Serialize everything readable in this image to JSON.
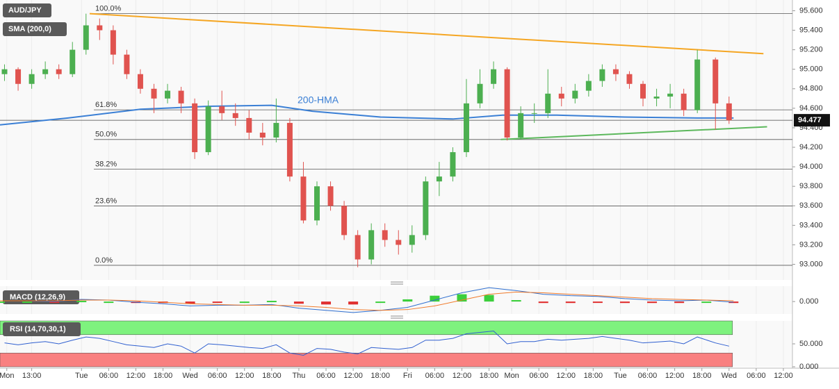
{
  "chart_data": {
    "type": "candlestick",
    "symbol": "AUD/JPY",
    "overlay_label": "SMA (200,0)",
    "up_color": "#4caf50",
    "down_color": "#e0534f",
    "grid": true,
    "xlim": [
      -18,
      157
    ],
    "xticks": [
      {
        "value": -16.5,
        "label": "Mon"
      },
      {
        "value": -11,
        "label": "13:00"
      },
      {
        "value": 0,
        "label": "Tue"
      },
      {
        "value": 6,
        "label": "06:00"
      },
      {
        "value": 12,
        "label": "12:00"
      },
      {
        "value": 18,
        "label": "18:00"
      },
      {
        "value": 24,
        "label": "Wed"
      },
      {
        "value": 30,
        "label": "06:00"
      },
      {
        "value": 36,
        "label": "12:00"
      },
      {
        "value": 42,
        "label": "18:00"
      },
      {
        "value": 48,
        "label": "Thu"
      },
      {
        "value": 54,
        "label": "06:00"
      },
      {
        "value": 60,
        "label": "12:00"
      },
      {
        "value": 66,
        "label": "18:00"
      },
      {
        "value": 72,
        "label": "Fri"
      },
      {
        "value": 78,
        "label": "06:00"
      },
      {
        "value": 84,
        "label": "12:00"
      },
      {
        "value": 90,
        "label": "18:00"
      },
      {
        "value": 95,
        "label": "Mon"
      },
      {
        "value": 101,
        "label": "06:00"
      },
      {
        "value": 107,
        "label": "12:00"
      },
      {
        "value": 113,
        "label": "18:00"
      },
      {
        "value": 119,
        "label": "Tue"
      },
      {
        "value": 125,
        "label": "06:00"
      },
      {
        "value": 131,
        "label": "12:00"
      },
      {
        "value": 137,
        "label": "18:00"
      },
      {
        "value": 143,
        "label": "Wed"
      },
      {
        "value": 149,
        "label": "06:00"
      },
      {
        "value": 155,
        "label": "12:00"
      }
    ],
    "ylim": [
      92.84,
      95.71
    ],
    "yticks": [
      {
        "value": 95.6,
        "label": "95.600"
      },
      {
        "value": 95.4,
        "label": "95.400"
      },
      {
        "value": 95.2,
        "label": "95.200"
      },
      {
        "value": 95.0,
        "label": "95.000"
      },
      {
        "value": 94.8,
        "label": "94.800"
      },
      {
        "value": 94.6,
        "label": "94.600"
      },
      {
        "value": 94.4,
        "label": "94.400"
      },
      {
        "value": 94.2,
        "label": "94.200"
      },
      {
        "value": 94.0,
        "label": "94.000"
      },
      {
        "value": 93.8,
        "label": "93.800"
      },
      {
        "value": 93.6,
        "label": "93.600"
      },
      {
        "value": 93.4,
        "label": "93.400"
      },
      {
        "value": 93.2,
        "label": "93.200"
      },
      {
        "value": 93.0,
        "label": "93.000"
      }
    ],
    "last_price": 94.477,
    "x": [
      -17,
      -14,
      -11,
      -8,
      -5,
      -2,
      1,
      4,
      7,
      10,
      13,
      16,
      19,
      22,
      25,
      28,
      31,
      34,
      37,
      40,
      43,
      46,
      49,
      52,
      55,
      58,
      61,
      64,
      67,
      70,
      73,
      76,
      79,
      82,
      85,
      88,
      91,
      94,
      97,
      100,
      103,
      106,
      109,
      112,
      115,
      118,
      121,
      124,
      127,
      130,
      133,
      136,
      140,
      143
    ],
    "ohlc": [
      [
        94.95,
        95.05,
        94.88,
        95.0
      ],
      [
        95.0,
        95.02,
        94.78,
        94.85
      ],
      [
        94.85,
        95.0,
        94.8,
        94.95
      ],
      [
        94.95,
        95.08,
        94.9,
        95.0
      ],
      [
        95.0,
        95.05,
        94.9,
        94.95
      ],
      [
        94.95,
        95.28,
        94.92,
        95.2
      ],
      [
        95.2,
        95.57,
        95.15,
        95.45
      ],
      [
        95.45,
        95.52,
        95.3,
        95.4
      ],
      [
        95.4,
        95.45,
        95.05,
        95.15
      ],
      [
        95.15,
        95.2,
        94.9,
        94.95
      ],
      [
        94.95,
        95.0,
        94.75,
        94.8
      ],
      [
        94.8,
        94.85,
        94.55,
        94.7
      ],
      [
        94.7,
        94.85,
        94.65,
        94.78
      ],
      [
        94.78,
        94.82,
        94.55,
        94.65
      ],
      [
        94.65,
        94.7,
        94.08,
        94.15
      ],
      [
        94.15,
        94.68,
        94.12,
        94.62
      ],
      [
        94.62,
        94.78,
        94.48,
        94.55
      ],
      [
        94.55,
        94.65,
        94.42,
        94.5
      ],
      [
        94.5,
        94.58,
        94.28,
        94.35
      ],
      [
        94.35,
        94.45,
        94.22,
        94.3
      ],
      [
        94.3,
        94.7,
        94.25,
        94.45
      ],
      [
        94.45,
        94.5,
        93.85,
        93.9
      ],
      [
        93.9,
        94.05,
        93.42,
        93.45
      ],
      [
        93.45,
        93.85,
        93.4,
        93.8
      ],
      [
        93.8,
        93.85,
        93.55,
        93.6
      ],
      [
        93.6,
        93.65,
        93.25,
        93.3
      ],
      [
        93.3,
        93.35,
        92.97,
        93.05
      ],
      [
        93.05,
        93.42,
        93.0,
        93.35
      ],
      [
        93.35,
        93.42,
        93.18,
        93.25
      ],
      [
        93.25,
        93.35,
        93.1,
        93.2
      ],
      [
        93.2,
        93.4,
        93.12,
        93.3
      ],
      [
        93.3,
        93.9,
        93.25,
        93.85
      ],
      [
        93.85,
        94.05,
        93.7,
        93.9
      ],
      [
        93.9,
        94.2,
        93.85,
        94.15
      ],
      [
        94.15,
        94.9,
        94.1,
        94.65
      ],
      [
        94.65,
        95.0,
        94.6,
        94.85
      ],
      [
        94.85,
        95.08,
        94.8,
        95.0
      ],
      [
        95.0,
        95.02,
        94.27,
        94.3
      ],
      [
        94.3,
        94.62,
        94.28,
        94.55
      ],
      [
        94.55,
        94.65,
        94.45,
        94.55
      ],
      [
        94.55,
        95.0,
        94.5,
        94.75
      ],
      [
        94.75,
        94.82,
        94.62,
        94.7
      ],
      [
        94.7,
        94.85,
        94.65,
        94.78
      ],
      [
        94.78,
        94.95,
        94.72,
        94.88
      ],
      [
        94.88,
        95.05,
        94.82,
        95.0
      ],
      [
        95.0,
        95.05,
        94.88,
        94.95
      ],
      [
        94.95,
        94.98,
        94.8,
        94.85
      ],
      [
        94.85,
        94.88,
        94.62,
        94.7
      ],
      [
        94.7,
        94.8,
        94.62,
        94.72
      ],
      [
        94.72,
        94.85,
        94.6,
        94.75
      ],
      [
        94.75,
        94.8,
        94.52,
        94.58
      ],
      [
        94.58,
        95.2,
        94.55,
        95.1
      ],
      [
        95.1,
        95.12,
        94.38,
        94.65
      ],
      [
        94.65,
        94.72,
        94.44,
        94.477
      ]
    ],
    "hma": {
      "name": "200-HMA",
      "color": "#3a7fd5",
      "x": [
        -18,
        -3,
        13,
        28,
        42,
        51,
        66,
        82,
        93,
        105,
        120,
        136,
        144
      ],
      "values": [
        94.43,
        94.5,
        94.59,
        94.62,
        94.63,
        94.57,
        94.51,
        94.49,
        94.53,
        94.53,
        94.51,
        94.5,
        94.5
      ]
    },
    "fibonacci": [
      {
        "label": "100.0%",
        "value": 95.57
      },
      {
        "label": "61.8%",
        "value": 94.584
      },
      {
        "label": "50.0%",
        "value": 94.28
      },
      {
        "label": "38.2%",
        "value": 93.976
      },
      {
        "label": "23.6%",
        "value": 93.599
      },
      {
        "label": "0.0%",
        "value": 92.99
      }
    ],
    "trendlines": [
      {
        "color": "#f5a623",
        "x": [
          1.8,
          150.6
        ],
        "values": [
          95.57,
          95.16
        ]
      },
      {
        "color": "#5cb85c",
        "x": [
          92.6,
          151.4
        ],
        "values": [
          94.28,
          94.41
        ]
      }
    ],
    "macd": {
      "label": "MACD (12,26,9)",
      "ylim": [
        -0.17,
        0.21
      ],
      "yticks": [
        {
          "value": 0,
          "label": "0.000"
        }
      ],
      "x": [
        -18,
        -12,
        -6,
        0,
        6,
        12,
        18,
        24,
        30,
        36,
        42,
        48,
        54,
        60,
        66,
        72,
        78,
        84,
        90,
        96,
        102,
        108,
        114,
        120,
        126,
        132,
        138,
        144
      ],
      "macd_line": {
        "color": "#2f6fd0",
        "values": [
          0.01,
          0.01,
          0.0,
          0.03,
          0.02,
          -0.01,
          -0.03,
          -0.06,
          -0.05,
          -0.05,
          -0.04,
          -0.09,
          -0.12,
          -0.15,
          -0.12,
          -0.08,
          0.02,
          0.12,
          0.19,
          0.15,
          0.1,
          0.08,
          0.07,
          0.04,
          0.02,
          0.01,
          0.02,
          -0.01
        ]
      },
      "signal_line": {
        "color": "#f07a2a",
        "values": [
          0.01,
          0.01,
          0.01,
          0.02,
          0.02,
          0.01,
          -0.01,
          -0.03,
          -0.04,
          -0.05,
          -0.05,
          -0.06,
          -0.08,
          -0.11,
          -0.12,
          -0.11,
          -0.06,
          0.02,
          0.1,
          0.13,
          0.12,
          0.1,
          0.08,
          0.06,
          0.04,
          0.03,
          0.02,
          0.01
        ]
      },
      "histogram": [
        0,
        0,
        -0.01,
        0.01,
        0,
        -0.02,
        -0.02,
        -0.03,
        -0.01,
        0,
        0.01,
        -0.03,
        -0.04,
        -0.04,
        0,
        0.03,
        0.08,
        0.1,
        0.09,
        0.02,
        -0.02,
        -0.02,
        -0.01,
        -0.02,
        -0.02,
        -0.02,
        0,
        -0.02
      ]
    },
    "rsi": {
      "label": "RSI (14,70,30,1)",
      "color": "#2f5fd0",
      "ylim": [
        0,
        100
      ],
      "overbought": 70,
      "oversold": 30,
      "yticks": [
        {
          "value": 50,
          "label": "50.000"
        },
        {
          "value": 0,
          "label": "0.000"
        }
      ],
      "values": [
        52,
        48,
        52,
        55,
        50,
        58,
        65,
        62,
        55,
        48,
        45,
        42,
        50,
        45,
        30,
        50,
        48,
        45,
        42,
        40,
        48,
        30,
        25,
        40,
        38,
        32,
        28,
        42,
        40,
        38,
        42,
        58,
        58,
        62,
        72,
        75,
        78,
        50,
        55,
        55,
        60,
        58,
        60,
        62,
        66,
        62,
        58,
        52,
        54,
        56,
        50,
        65,
        52,
        45
      ]
    }
  }
}
